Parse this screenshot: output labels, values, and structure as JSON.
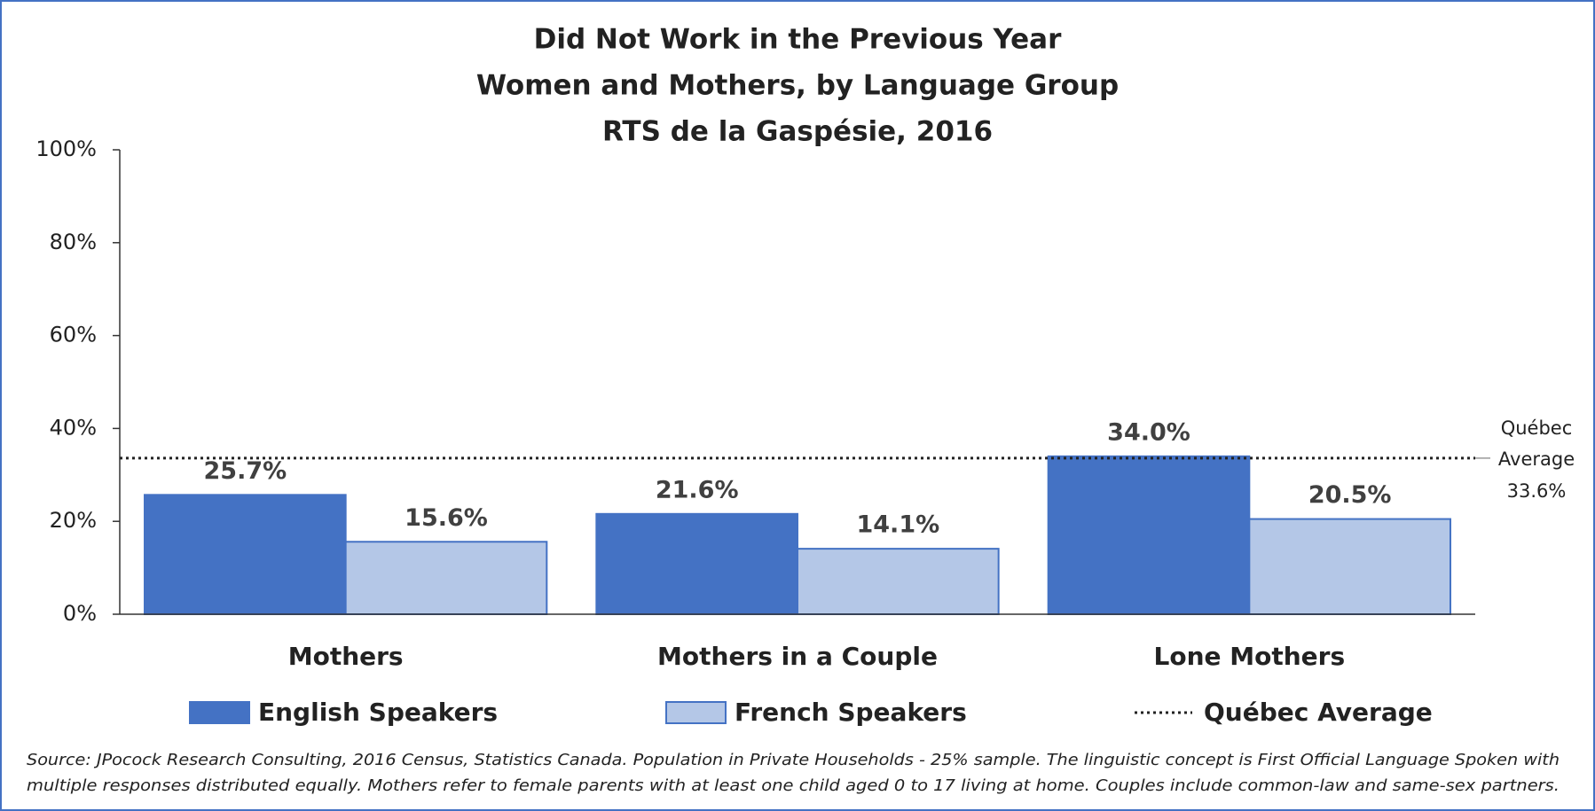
{
  "chart_data": {
    "type": "bar",
    "title": [
      "Did Not Work in the Previous Year",
      "Women and Mothers, by Language Group",
      "RTS de la Gaspésie, 2016"
    ],
    "categories": [
      "Mothers",
      "Mothers in a Couple",
      "Lone Mothers"
    ],
    "series": [
      {
        "name": "English Speakers",
        "color": "#4472c4",
        "values": [
          25.7,
          21.6,
          34.0
        ],
        "value_labels": [
          "25.7%",
          "21.6%",
          "34.0%"
        ]
      },
      {
        "name": "French Speakers",
        "color": "#b4c7e7",
        "values": [
          15.6,
          14.1,
          20.5
        ],
        "value_labels": [
          "15.6%",
          "14.1%",
          "20.5%"
        ]
      }
    ],
    "reference_line": {
      "name": "Québec Average",
      "value": 33.6,
      "label_lines": [
        "Québec",
        "Average"
      ],
      "value_label": "33.6%",
      "style": "dotted",
      "color": "#222222"
    },
    "ylim": [
      0,
      100
    ],
    "yticks": [
      {
        "value": 0,
        "label": "0%"
      },
      {
        "value": 20,
        "label": "20%"
      },
      {
        "value": 40,
        "label": "40%"
      },
      {
        "value": 60,
        "label": "60%"
      },
      {
        "value": 80,
        "label": "80%"
      },
      {
        "value": 100,
        "label": "100%"
      }
    ],
    "grid": false,
    "legend": "bottom",
    "source": [
      "Source: JPocock Research Consulting, 2016 Census, Statistics Canada. Population in Private Households - 25% sample. The linguistic concept is First Official Language Spoken with",
      "multiple responses distributed equally. Mothers refer to female parents with at least one child aged 0 to 17 living at home. Couples include common-law and same-sex partners."
    ]
  }
}
